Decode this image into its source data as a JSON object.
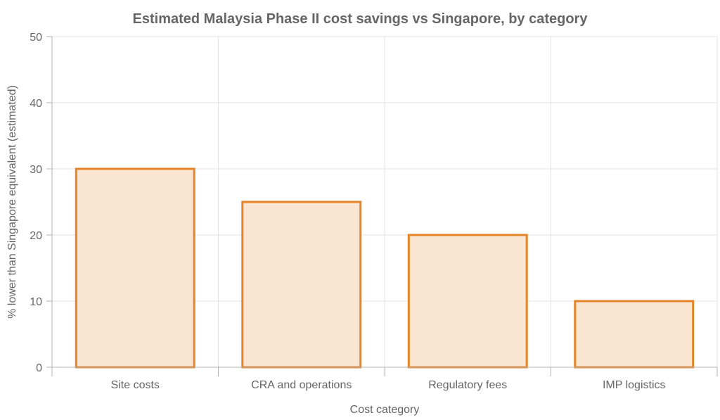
{
  "chart_data": {
    "type": "bar",
    "title": "Estimated Malaysia Phase II cost savings vs Singapore, by category",
    "xlabel": "Cost category",
    "ylabel": "% lower than Singapore equivalent (estimated)",
    "categories": [
      "Site costs",
      "CRA and operations",
      "Regulatory fees",
      "IMP logistics"
    ],
    "values": [
      30,
      25,
      20,
      10
    ],
    "ylim": [
      0,
      50
    ],
    "yticks": [
      0,
      10,
      20,
      30,
      40,
      50
    ],
    "grid": true,
    "legend": "none",
    "colors": {
      "bar_fill": "#fae5d3",
      "bar_stroke": "#e6842a"
    }
  }
}
